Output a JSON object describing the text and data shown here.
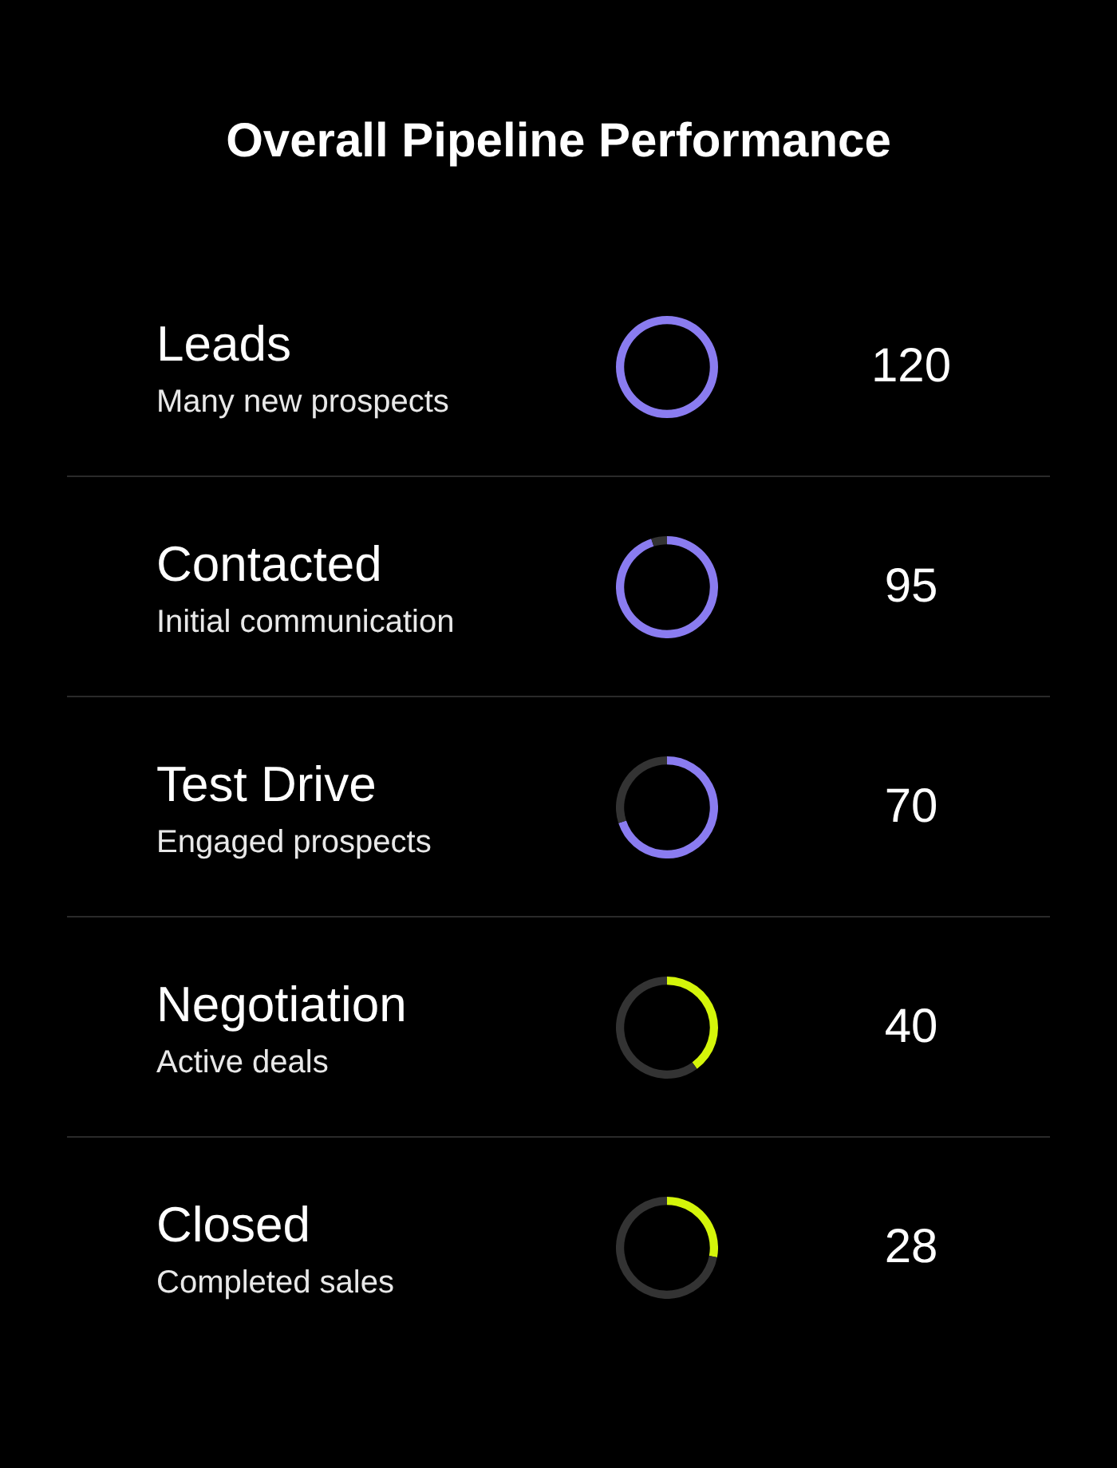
{
  "chart_data": {
    "type": "other",
    "title": "Overall Pipeline Performance",
    "categories": [
      "Leads",
      "Contacted",
      "Test Drive",
      "Negotiation",
      "Closed"
    ],
    "values": [
      120,
      95,
      70,
      40,
      28
    ],
    "colors": [
      "#8a7cf0",
      "#8a7cf0",
      "#8a7cf0",
      "#d4f50a",
      "#d4f50a"
    ],
    "annotations": [
      "Many new prospects",
      "Initial communication",
      "Engaged prospects",
      "Active deals",
      "Completed sales"
    ],
    "data_labels": true
  }
}
